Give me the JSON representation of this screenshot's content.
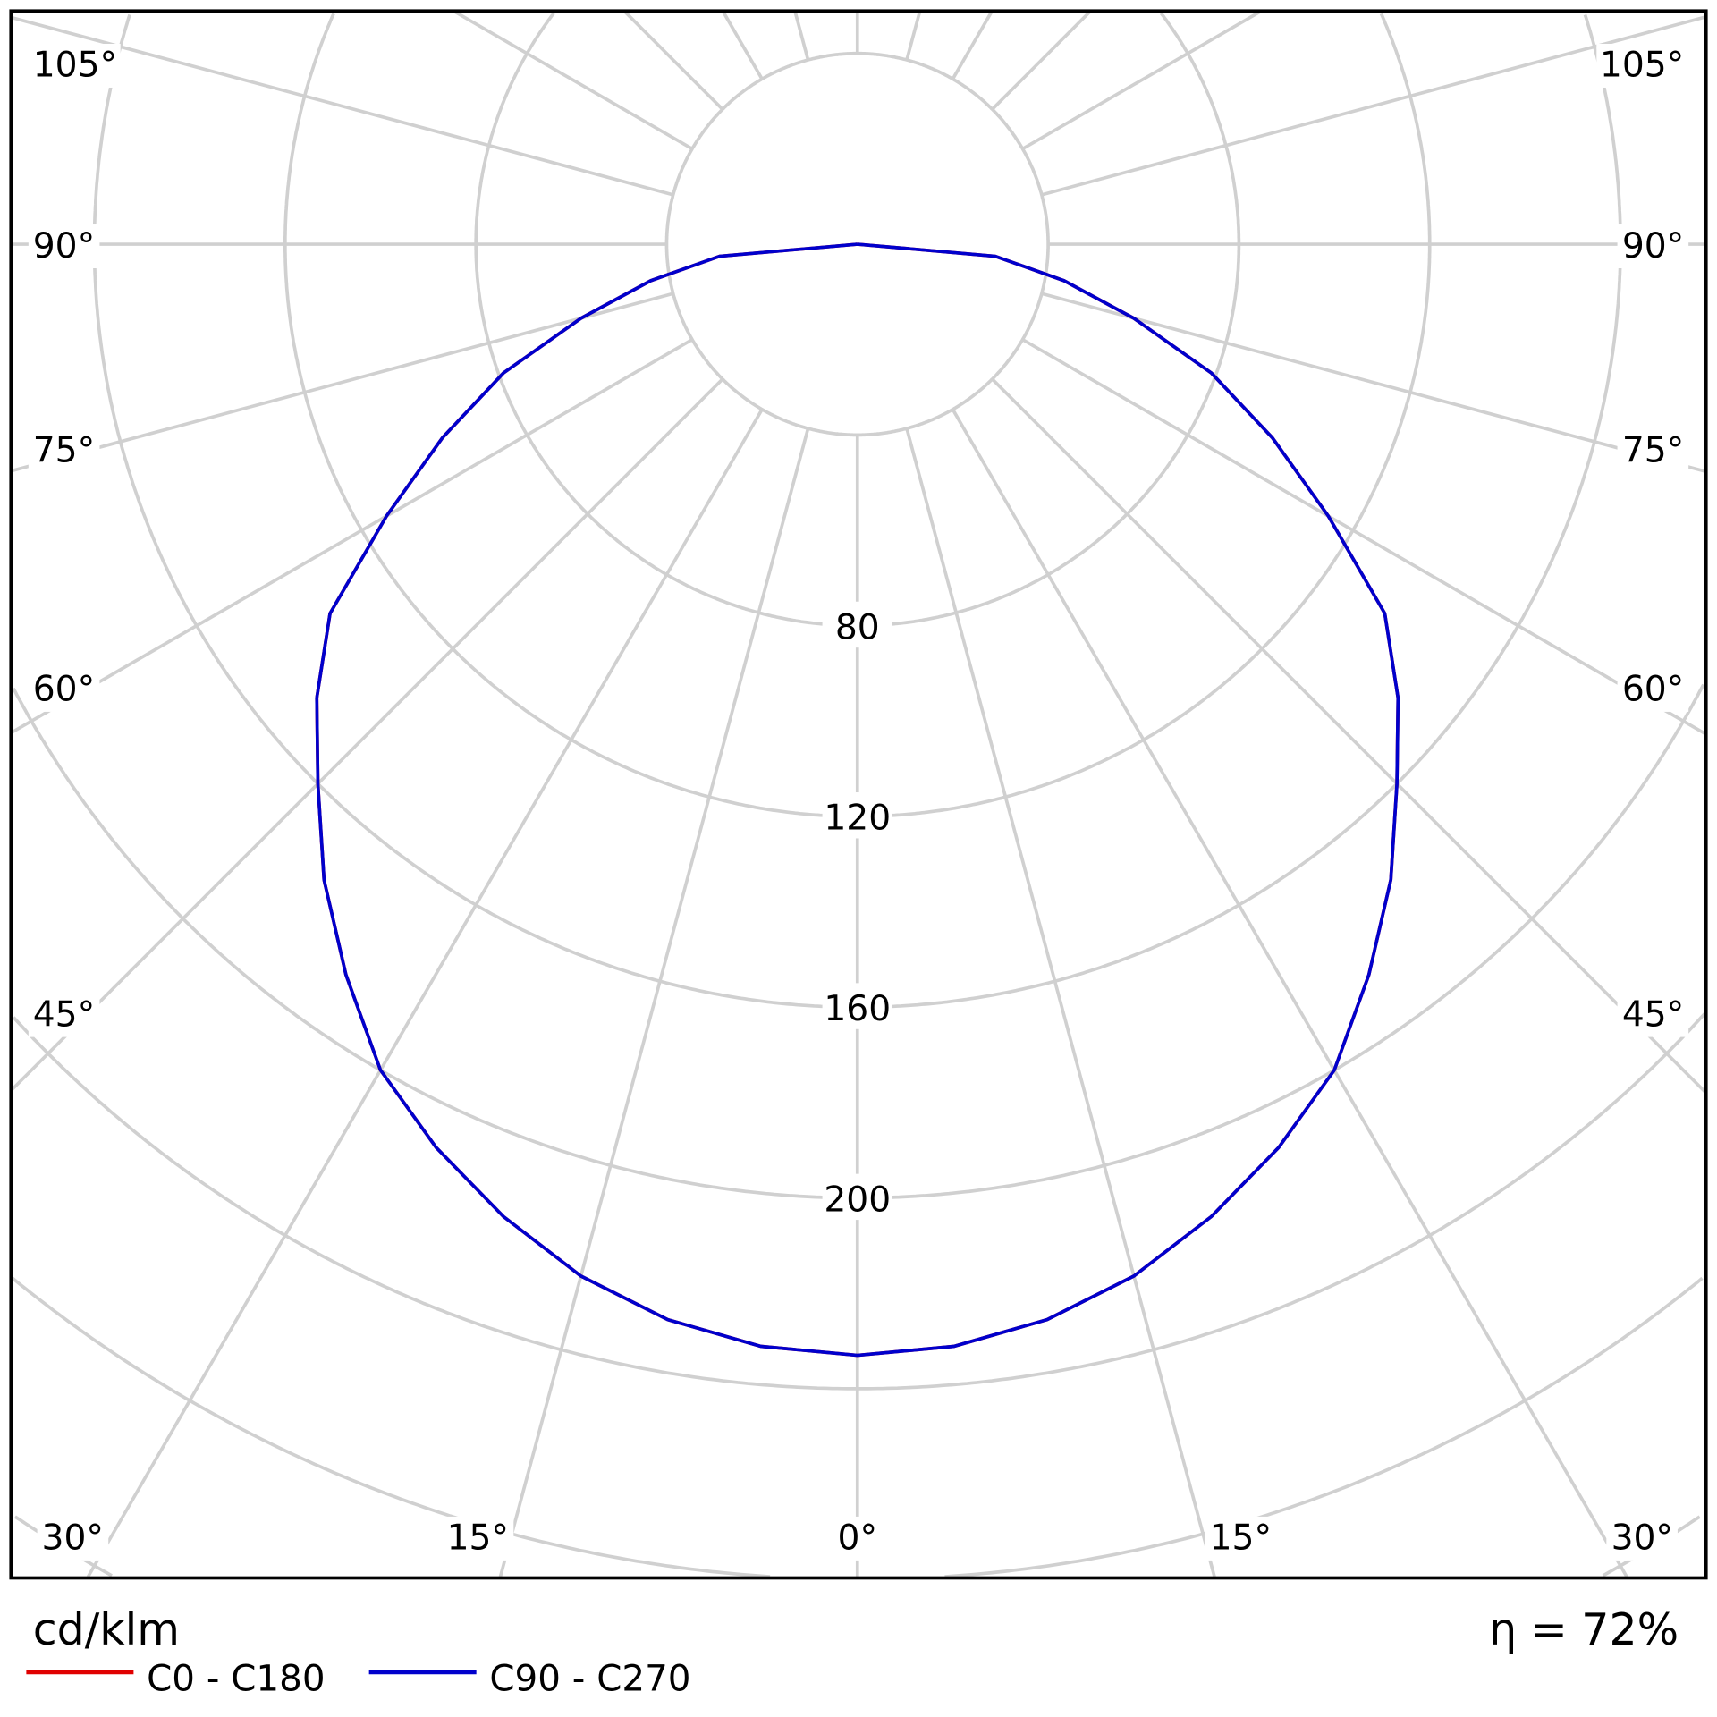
{
  "chart_data": {
    "type": "polar-line",
    "title": "",
    "unit_label": "cd/klm",
    "efficiency_label": "η = 72%",
    "radial_ticks": [
      40,
      80,
      120,
      160,
      200,
      240,
      280,
      320,
      360
    ],
    "radial_tick_labels": [
      "80",
      "120",
      "160",
      "200"
    ],
    "angle_tick_labels": {
      "left": [
        "105°",
        "90°",
        "75°",
        "60°",
        "45°",
        "30°",
        "15°"
      ],
      "center": "0°",
      "right": [
        "15°",
        "30°",
        "45°",
        "60°",
        "75°",
        "90°",
        "105°"
      ]
    },
    "grid": true,
    "spoke_step_deg": 15,
    "legend_placement": "bottom-left",
    "angles": [
      0,
      5,
      10,
      15,
      20,
      25,
      30,
      35,
      40,
      45,
      50,
      55,
      60,
      65,
      70,
      75,
      80,
      85,
      90
    ],
    "series": [
      {
        "name": "C0 - C180",
        "color": "#e00000",
        "values": [
          233,
          232,
          229,
          224,
          217,
          209,
          200,
          187,
          174,
          160,
          148,
          135,
          114,
          96,
          79,
          60,
          44,
          29,
          0
        ]
      },
      {
        "name": "C90 - C270",
        "color": "#0000cc",
        "values": [
          233,
          232,
          229,
          224,
          217,
          209,
          200,
          187,
          174,
          160,
          148,
          135,
          114,
          96,
          79,
          60,
          44,
          29,
          0
        ]
      }
    ],
    "grid_color": "#d0d0d0"
  }
}
